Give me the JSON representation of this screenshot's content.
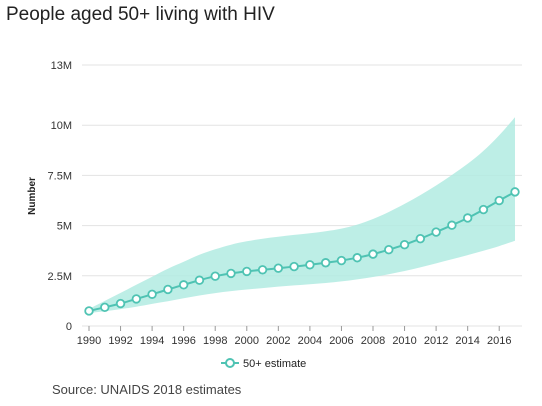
{
  "page": {
    "title": "People aged 50+ living with HIV",
    "source": "Source: UNAIDS 2018 estimates"
  },
  "chart_data": {
    "type": "line",
    "title": "People aged 50+ living with HIV",
    "xlabel": "",
    "ylabel": "Number",
    "ylim": [
      0,
      13000000
    ],
    "xlim": [
      1990,
      2017
    ],
    "yticks": [
      {
        "value": 0,
        "label": "0"
      },
      {
        "value": 2500000,
        "label": "2.5M"
      },
      {
        "value": 5000000,
        "label": "5M"
      },
      {
        "value": 7500000,
        "label": "7.5M"
      },
      {
        "value": 10000000,
        "label": "10M"
      },
      {
        "value": 13000000,
        "label": "13M"
      }
    ],
    "xticks": [
      1990,
      1992,
      1994,
      1996,
      1998,
      2000,
      2002,
      2004,
      2006,
      2008,
      2010,
      2012,
      2014,
      2016
    ],
    "grid": "horizontal",
    "legend_position": "bottom",
    "colors": {
      "line": "#4fc3b3",
      "band": "#b2ebe2",
      "grid": "#e3e3e3"
    },
    "x": [
      1990,
      1991,
      1992,
      1993,
      1994,
      1995,
      1996,
      1997,
      1998,
      1999,
      2000,
      2001,
      2002,
      2003,
      2004,
      2005,
      2006,
      2007,
      2008,
      2009,
      2010,
      2011,
      2012,
      2013,
      2014,
      2015,
      2016,
      2017
    ],
    "series": [
      {
        "name": "50+ estimate",
        "values": [
          750000,
          930000,
          1120000,
          1350000,
          1580000,
          1820000,
          2050000,
          2280000,
          2480000,
          2620000,
          2720000,
          2800000,
          2880000,
          2960000,
          3050000,
          3150000,
          3260000,
          3400000,
          3580000,
          3800000,
          4050000,
          4350000,
          4680000,
          5020000,
          5380000,
          5800000,
          6250000,
          6680000
        ],
        "lower": [
          650000,
          730000,
          840000,
          960000,
          1100000,
          1230000,
          1380000,
          1520000,
          1640000,
          1740000,
          1820000,
          1890000,
          1960000,
          2020000,
          2080000,
          2140000,
          2220000,
          2320000,
          2440000,
          2580000,
          2740000,
          2920000,
          3120000,
          3320000,
          3530000,
          3750000,
          3980000,
          4250000
        ],
        "upper": [
          850000,
          1250000,
          1650000,
          2050000,
          2450000,
          2850000,
          3200000,
          3550000,
          3820000,
          4050000,
          4220000,
          4350000,
          4450000,
          4540000,
          4620000,
          4720000,
          4850000,
          5050000,
          5330000,
          5680000,
          6080000,
          6520000,
          7000000,
          7520000,
          8080000,
          8720000,
          9500000,
          10400000
        ]
      }
    ]
  }
}
